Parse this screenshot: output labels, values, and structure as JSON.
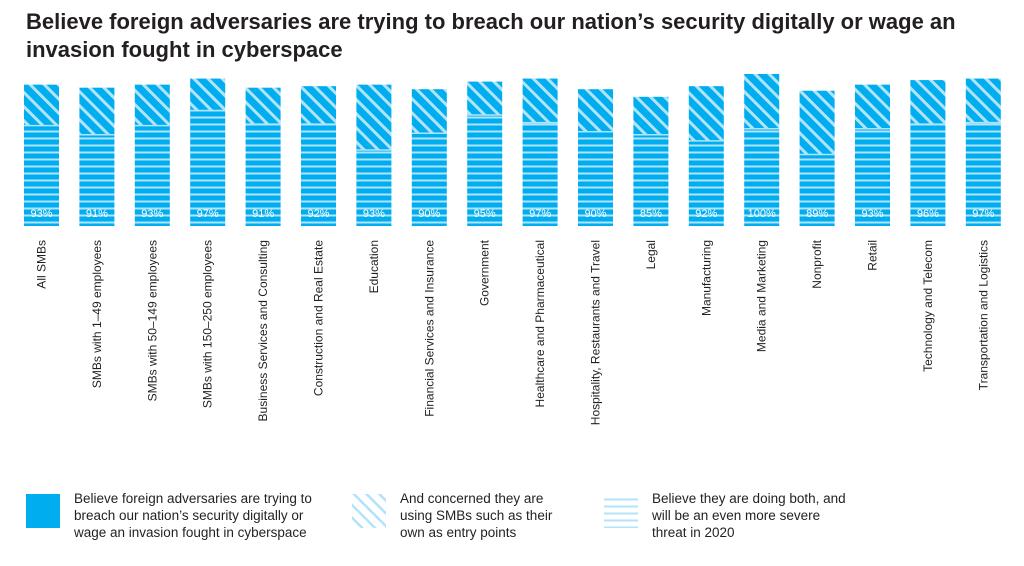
{
  "title": "Believe foreign adversaries are trying to breach our nation’s security digitally or wage an invasion fought in cyberspace",
  "colors": {
    "accent": "#00aeef",
    "stripe_light": "#b3e3f8",
    "white": "#ffffff",
    "text": "#231f20"
  },
  "chart_data": {
    "type": "bar",
    "categories": [
      "All SMBs",
      "SMBs with 1–49 employees",
      "SMBs with 50–149 employees",
      "SMBs with 150–250 employees",
      "Business Services and Consulting",
      "Construction and Real Estate",
      "Education",
      "Financial Services and Insurance",
      "Government",
      "Healthcare and Pharmaceutical",
      "Hospitality, Restaurants and Travel",
      "Legal",
      "Manufacturing",
      "Media and Marketing",
      "Nonprofit",
      "Retail",
      "Technology and Telecom",
      "Transportation and Logistics"
    ],
    "values": [
      93,
      91,
      93,
      97,
      91,
      92,
      93,
      90,
      95,
      97,
      90,
      85,
      92,
      100,
      89,
      93,
      96,
      97
    ],
    "value_labels": [
      "93%",
      "91%",
      "93%",
      "97%",
      "91%",
      "92%",
      "93%",
      "90%",
      "95%",
      "97%",
      "90%",
      "85%",
      "92%",
      "100%",
      "89%",
      "93%",
      "96%",
      "97%"
    ],
    "series": [
      {
        "name": "Believe foreign adversaries are trying to breach our nation’s security digitally or wage an invasion fought in cyberspace",
        "values": [
          93,
          91,
          93,
          97,
          91,
          92,
          93,
          90,
          95,
          97,
          90,
          85,
          92,
          100,
          89,
          93,
          96,
          97
        ]
      },
      {
        "name": "And concerned they are using SMBs such as their own as entry points",
        "values": [
          66,
          60,
          66,
          76,
          67,
          67,
          50,
          61,
          73,
          68,
          62,
          60,
          56,
          64,
          47,
          64,
          67,
          68
        ]
      },
      {
        "name": "Believe they are doing both, and will be an even more severe threat in 2020",
        "values": [
          66,
          60,
          66,
          76,
          67,
          67,
          50,
          61,
          73,
          68,
          62,
          60,
          56,
          64,
          47,
          64,
          67,
          68
        ]
      }
    ],
    "ylim": [
      0,
      100
    ],
    "grid": false,
    "legend_position": "bottom"
  },
  "legend": {
    "items": [
      {
        "label": "Believe foreign adversaries are trying to breach our nation’s security digitally or wage an invasion fought in cyberspace",
        "pattern": "solid"
      },
      {
        "label": "And concerned they are using SMBs such as their own as entry points",
        "pattern": "diagonal"
      },
      {
        "label": "Believe they are doing both, and will be an even more severe threat in 2020",
        "pattern": "horizontal"
      }
    ]
  }
}
